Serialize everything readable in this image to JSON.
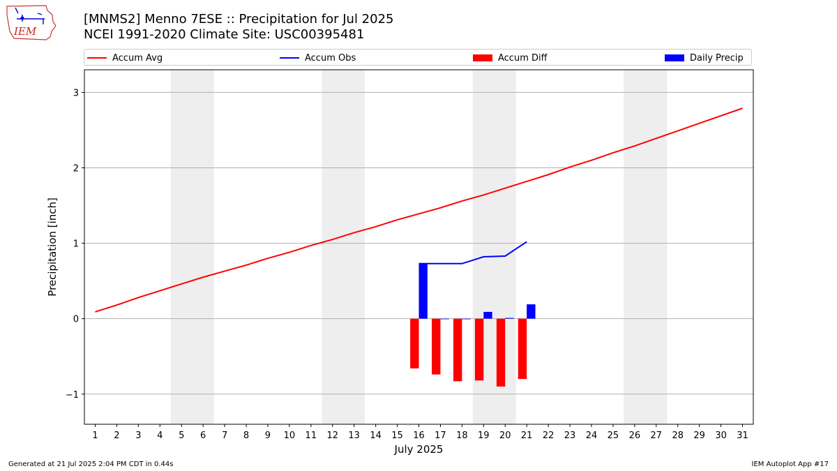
{
  "logo": {
    "text": "IEM"
  },
  "header": {
    "title": "[MNMS2] Menno 7ESE :: Precipitation for Jul 2025",
    "subtitle": "NCEI 1991-2020 Climate Site: USC00395481"
  },
  "legend": {
    "items": [
      {
        "label": "Accum Avg",
        "kind": "line",
        "color": "#ff0000"
      },
      {
        "label": "Accum Obs",
        "kind": "line",
        "color": "#0000ff"
      },
      {
        "label": "Accum Diff",
        "kind": "patch",
        "color": "#ff0000"
      },
      {
        "label": "Daily Precip",
        "kind": "patch",
        "color": "#0000ff"
      }
    ]
  },
  "footer": {
    "generated": "Generated at 21 Jul 2025 2:04 PM CDT in 0.44s",
    "app": "IEM Autoplot App #17"
  },
  "chart_data": {
    "type": "bar",
    "xlabel": "July 2025",
    "ylabel": "Precipitation [inch]",
    "xlim": [
      0.5,
      31.5
    ],
    "ylim": [
      -1.4,
      3.3
    ],
    "yticks": [
      -1,
      0,
      1,
      2,
      3
    ],
    "ytick_labels": [
      "−1",
      "0",
      "1",
      "2",
      "3"
    ],
    "x": [
      1,
      2,
      3,
      4,
      5,
      6,
      7,
      8,
      9,
      10,
      11,
      12,
      13,
      14,
      15,
      16,
      17,
      18,
      19,
      20,
      21,
      22,
      23,
      24,
      25,
      26,
      27,
      28,
      29,
      30,
      31
    ],
    "grid": "horizontal",
    "weekend_shading": [
      [
        4.5,
        6.5
      ],
      [
        11.5,
        13.5
      ],
      [
        18.5,
        20.5
      ],
      [
        25.5,
        27.5
      ]
    ],
    "colors": {
      "avg": "#ff0000",
      "obs": "#0000ff",
      "weekend": "#eeeeee",
      "grid": "#b0b0b0"
    },
    "series": [
      {
        "name": "Accum Avg",
        "kind": "line",
        "x": [
          1,
          2,
          3,
          4,
          5,
          6,
          7,
          8,
          9,
          10,
          11,
          12,
          13,
          14,
          15,
          16,
          17,
          18,
          19,
          20,
          21,
          22,
          23,
          24,
          25,
          26,
          27,
          28,
          29,
          30,
          31
        ],
        "values": [
          0.09,
          0.18,
          0.28,
          0.37,
          0.46,
          0.55,
          0.63,
          0.71,
          0.8,
          0.88,
          0.97,
          1.05,
          1.14,
          1.22,
          1.31,
          1.39,
          1.47,
          1.56,
          1.64,
          1.73,
          1.82,
          1.91,
          2.01,
          2.1,
          2.2,
          2.29,
          2.39,
          2.49,
          2.59,
          2.69,
          2.79
        ]
      },
      {
        "name": "Accum Obs",
        "kind": "line",
        "x": [
          16,
          17,
          18,
          19,
          20,
          21
        ],
        "values": [
          0.73,
          0.73,
          0.73,
          0.82,
          0.83,
          1.02
        ]
      },
      {
        "name": "Accum Diff",
        "kind": "bar",
        "x": [
          16,
          17,
          18,
          19,
          20,
          21
        ],
        "values": [
          -0.66,
          -0.74,
          -0.83,
          -0.82,
          -0.9,
          -0.8
        ]
      },
      {
        "name": "Daily Precip",
        "kind": "bar",
        "x": [
          16,
          17,
          18,
          19,
          20,
          21
        ],
        "values": [
          0.73,
          0.0,
          0.0,
          0.09,
          0.01,
          0.19
        ]
      }
    ]
  }
}
